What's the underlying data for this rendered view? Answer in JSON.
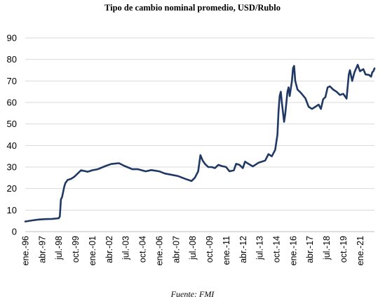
{
  "chart_data": {
    "type": "line",
    "title": "Tipo de cambio nominal promedio, USD/Rublo",
    "xlabel": "",
    "ylabel": "",
    "ylim": [
      0,
      90
    ],
    "yticks": [
      0,
      10,
      20,
      30,
      40,
      50,
      60,
      70,
      80,
      90
    ],
    "xticks": [
      "ene.-96",
      "abr.-97",
      "jul.-98",
      "oct.-99",
      "ene.-01",
      "abr.-02",
      "jul.-03",
      "oct.-04",
      "ene.-06",
      "abr.-07",
      "jul.-08",
      "oct.-09",
      "ene.-11",
      "abr.-12",
      "jul.-13",
      "oct.-14",
      "ene.-16",
      "abr.-17",
      "jul.-18",
      "oct.-19",
      "ene.-21"
    ],
    "xrange": [
      "1996-01",
      "2022-02"
    ],
    "grid": "horizontal",
    "legend": "none",
    "series": [
      {
        "color": "#1f3864",
        "points": [
          [
            "1996-01",
            4.7
          ],
          [
            "1996-07",
            5.2
          ],
          [
            "1997-01",
            5.6
          ],
          [
            "1997-07",
            5.8
          ],
          [
            "1998-01",
            5.9
          ],
          [
            "1998-07",
            6.2
          ],
          [
            "1998-08",
            7.0
          ],
          [
            "1998-09",
            15.0
          ],
          [
            "1998-10",
            16.0
          ],
          [
            "1998-12",
            21.0
          ],
          [
            "1999-01",
            22.6
          ],
          [
            "1999-03",
            24.0
          ],
          [
            "1999-06",
            24.5
          ],
          [
            "1999-09",
            25.5
          ],
          [
            "1999-12",
            27.0
          ],
          [
            "2000-03",
            28.5
          ],
          [
            "2000-09",
            27.8
          ],
          [
            "2001-01",
            28.5
          ],
          [
            "2001-06",
            29.0
          ],
          [
            "2002-01",
            30.5
          ],
          [
            "2002-06",
            31.4
          ],
          [
            "2003-01",
            31.8
          ],
          [
            "2003-06",
            30.5
          ],
          [
            "2004-01",
            29.0
          ],
          [
            "2004-06",
            29.0
          ],
          [
            "2005-01",
            28.0
          ],
          [
            "2005-06",
            28.6
          ],
          [
            "2006-01",
            28.0
          ],
          [
            "2006-06",
            27.0
          ],
          [
            "2007-01",
            26.3
          ],
          [
            "2007-06",
            25.8
          ],
          [
            "2008-01",
            24.4
          ],
          [
            "2008-06",
            23.5
          ],
          [
            "2008-09",
            25.0
          ],
          [
            "2008-12",
            28.0
          ],
          [
            "2009-02",
            35.5
          ],
          [
            "2009-04",
            33.0
          ],
          [
            "2009-06",
            31.5
          ],
          [
            "2009-09",
            30.0
          ],
          [
            "2009-12",
            30.0
          ],
          [
            "2010-03",
            29.5
          ],
          [
            "2010-06",
            31.0
          ],
          [
            "2010-09",
            30.5
          ],
          [
            "2011-01",
            30.0
          ],
          [
            "2011-04",
            28.0
          ],
          [
            "2011-08",
            28.5
          ],
          [
            "2011-10",
            31.5
          ],
          [
            "2012-01",
            31.0
          ],
          [
            "2012-04",
            29.5
          ],
          [
            "2012-06",
            32.5
          ],
          [
            "2012-09",
            31.5
          ],
          [
            "2013-01",
            30.3
          ],
          [
            "2013-06",
            32.0
          ],
          [
            "2013-12",
            33.0
          ],
          [
            "2014-03",
            36.0
          ],
          [
            "2014-06",
            35.0
          ],
          [
            "2014-09",
            38.0
          ],
          [
            "2014-11",
            45.0
          ],
          [
            "2014-12",
            56.0
          ],
          [
            "2015-01",
            63.0
          ],
          [
            "2015-02",
            65.0
          ],
          [
            "2015-03",
            60.0
          ],
          [
            "2015-05",
            51.0
          ],
          [
            "2015-06",
            54.5
          ],
          [
            "2015-08",
            65.0
          ],
          [
            "2015-09",
            67.0
          ],
          [
            "2015-10",
            63.0
          ],
          [
            "2015-12",
            70.0
          ],
          [
            "2016-01",
            76.0
          ],
          [
            "2016-02",
            77.0
          ],
          [
            "2016-03",
            70.0
          ],
          [
            "2016-05",
            66.0
          ],
          [
            "2016-08",
            64.5
          ],
          [
            "2016-12",
            62.0
          ],
          [
            "2017-03",
            58.0
          ],
          [
            "2017-06",
            57.0
          ],
          [
            "2017-09",
            58.0
          ],
          [
            "2017-12",
            59.0
          ],
          [
            "2018-02",
            57.0
          ],
          [
            "2018-04",
            61.5
          ],
          [
            "2018-06",
            62.5
          ],
          [
            "2018-08",
            67.0
          ],
          [
            "2018-10",
            67.5
          ],
          [
            "2019-01",
            66.0
          ],
          [
            "2019-04",
            65.0
          ],
          [
            "2019-07",
            63.5
          ],
          [
            "2019-10",
            64.0
          ],
          [
            "2020-01",
            61.8
          ],
          [
            "2020-03",
            73.0
          ],
          [
            "2020-04",
            75.0
          ],
          [
            "2020-06",
            70.0
          ],
          [
            "2020-08",
            74.0
          ],
          [
            "2020-11",
            77.5
          ],
          [
            "2021-01",
            74.5
          ],
          [
            "2021-04",
            75.5
          ],
          [
            "2021-06",
            73.0
          ],
          [
            "2021-09",
            72.8
          ],
          [
            "2021-11",
            72.0
          ],
          [
            "2021-12",
            74.0
          ],
          [
            "2022-01",
            74.5
          ],
          [
            "2022-02",
            75.8
          ]
        ]
      }
    ]
  },
  "source_note": "Fuente: FMI"
}
